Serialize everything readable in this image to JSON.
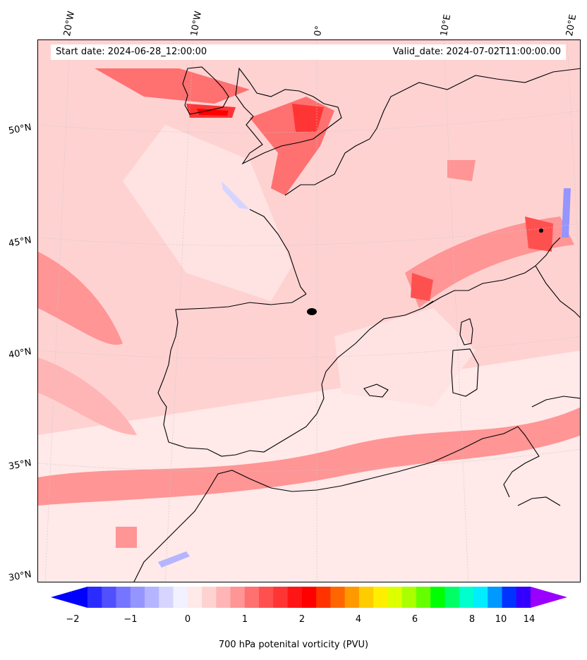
{
  "header": {
    "start_date": "Start date: 2024-06-28_12:00:00",
    "valid_date": "Valid_date: 2024-07-02T11:00:00.00"
  },
  "longitude_labels": [
    "20°W",
    "10°W",
    "0°",
    "10°E",
    "20°E"
  ],
  "latitude_labels": [
    "50°N",
    "45°N",
    "40°N",
    "35°N",
    "30°N"
  ],
  "colorbar": {
    "label": "700 hPa potenital vorticity (PVU)",
    "ticks": [
      "−2",
      "−1",
      "0",
      "1",
      "2",
      "4",
      "6",
      "8",
      "10",
      "14"
    ],
    "colors": [
      "#0000ff",
      "#2b2bff",
      "#5050ff",
      "#7575ff",
      "#9595ff",
      "#b5b5ff",
      "#d5d5ff",
      "#f1f1ff",
      "#ffe9e9",
      "#ffd2d2",
      "#ffb5b5",
      "#ff9595",
      "#ff7070",
      "#ff5050",
      "#ff3535",
      "#ff1515",
      "#ff0000",
      "#ff3300",
      "#ff6600",
      "#ff9900",
      "#ffcc00",
      "#ffee00",
      "#ddff00",
      "#aaff00",
      "#66ff00",
      "#00ff00",
      "#00ff66",
      "#00ffcc",
      "#00eeff",
      "#0099ff",
      "#0033ff",
      "#3300ff",
      "#9900ff"
    ]
  },
  "style": {
    "background_fill": "#ffd2d2",
    "coastline_color": "#000000",
    "graticule_color": "#c8c8c8"
  }
}
